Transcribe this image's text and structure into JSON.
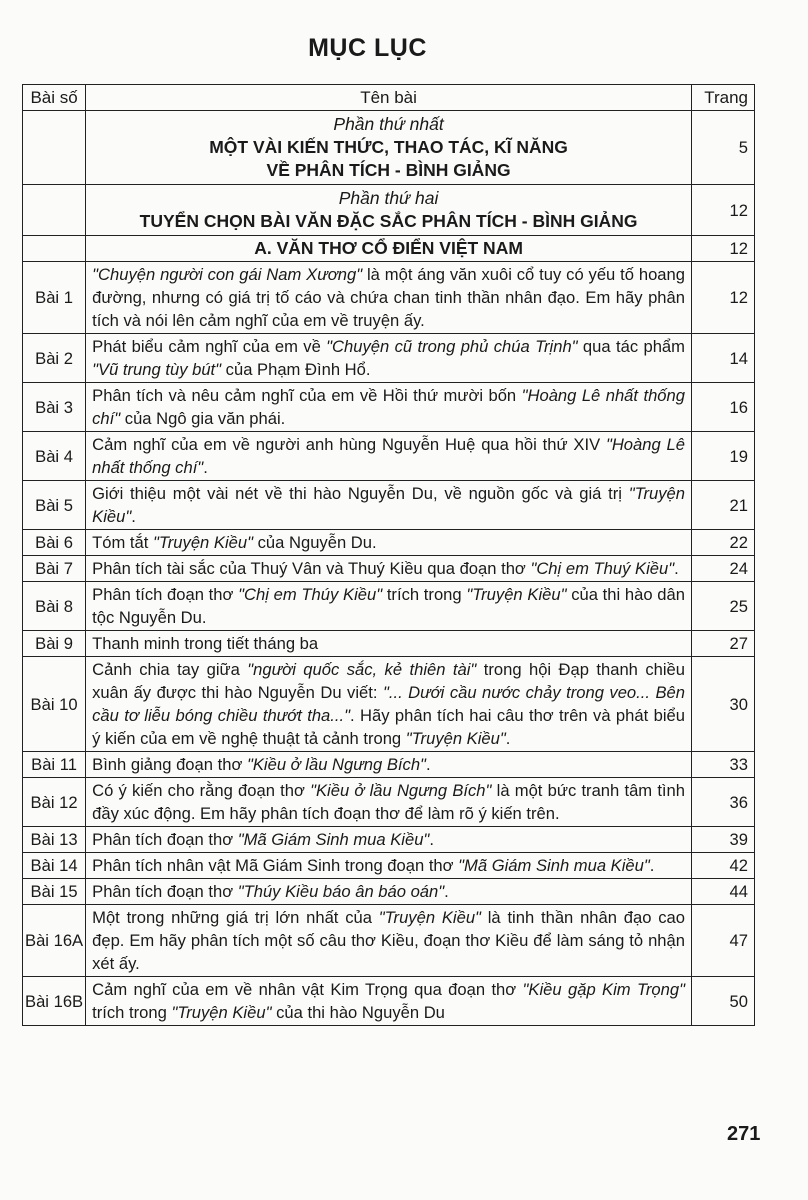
{
  "title": "MỤC LỤC",
  "table": {
    "headers": {
      "number": "Bài số",
      "name": "Tên bài",
      "page": "Trang"
    },
    "parts": [
      {
        "label": "Phần thứ nhất",
        "title_line1": "MỘT VÀI KIẾN THỨC, THAO TÁC, KĨ NĂNG",
        "title_line2": "VỀ PHÂN TÍCH - BÌNH GIẢNG",
        "page": "5"
      },
      {
        "label": "Phần thứ hai",
        "title_line1": "TUYỂN CHỌN BÀI VĂN ĐẶC SẮC PHÂN TÍCH - BÌNH GIẢNG",
        "page": "12"
      }
    ],
    "section": {
      "title": "A. VĂN THƠ CỔ ĐIỂN VIỆT NAM",
      "page": "12"
    },
    "rows": [
      {
        "number": "Bài 1",
        "segments": [
          {
            "t": "\"Chuyện người con gái Nam Xương\"",
            "i": true
          },
          {
            "t": " là một áng văn xuôi cổ tuy có yếu tố hoang đường, nhưng có giá trị tố cáo và chứa chan tinh thần nhân đạo. Em hãy phân tích và nói lên cảm nghĩ của em về truyện ấy."
          }
        ],
        "page": "12"
      },
      {
        "number": "Bài 2",
        "segments": [
          {
            "t": "Phát biểu cảm nghĩ của em về "
          },
          {
            "t": "\"Chuyện cũ trong phủ chúa Trịnh\"",
            "i": true
          },
          {
            "t": " qua tác phẩm "
          },
          {
            "t": "\"Vũ trung tùy bút\"",
            "i": true
          },
          {
            "t": " của Phạm Đình Hổ."
          }
        ],
        "page": "14"
      },
      {
        "number": "Bài 3",
        "segments": [
          {
            "t": "Phân tích và nêu cảm nghĩ của em về Hồi thứ mười bốn "
          },
          {
            "t": "\"Hoàng Lê nhất thống chí\"",
            "i": true
          },
          {
            "t": " của Ngô gia văn phái."
          }
        ],
        "page": "16"
      },
      {
        "number": "Bài 4",
        "segments": [
          {
            "t": "Cảm nghĩ của em về người anh hùng Nguyễn Huệ qua hồi thứ XIV "
          },
          {
            "t": "\"Hoàng Lê nhất thống chí\"",
            "i": true
          },
          {
            "t": "."
          }
        ],
        "page": "19"
      },
      {
        "number": "Bài 5",
        "segments": [
          {
            "t": "Giới thiệu một vài nét về thi hào Nguyễn Du, về nguồn gốc và giá trị "
          },
          {
            "t": "\"Truyện Kiều\"",
            "i": true
          },
          {
            "t": "."
          }
        ],
        "page": "21"
      },
      {
        "number": "Bài 6",
        "segments": [
          {
            "t": "Tóm tắt "
          },
          {
            "t": "\"Truyện Kiều\"",
            "i": true
          },
          {
            "t": " của Nguyễn Du."
          }
        ],
        "page": "22"
      },
      {
        "number": "Bài 7",
        "segments": [
          {
            "t": "Phân tích tài sắc của Thuý Vân và Thuý Kiều qua đoạn thơ "
          },
          {
            "t": "\"Chị em Thuý Kiều\"",
            "i": true
          },
          {
            "t": "."
          }
        ],
        "page": "24"
      },
      {
        "number": "Bài 8",
        "segments": [
          {
            "t": "Phân tích đoạn thơ "
          },
          {
            "t": "\"Chị em Thúy Kiều\"",
            "i": true
          },
          {
            "t": " trích trong "
          },
          {
            "t": "\"Truyện Kiều\"",
            "i": true
          },
          {
            "t": " của thi hào dân tộc Nguyễn Du."
          }
        ],
        "page": "25"
      },
      {
        "number": "Bài 9",
        "segments": [
          {
            "t": "Thanh minh trong tiết tháng ba"
          }
        ],
        "page": "27"
      },
      {
        "number": "Bài 10",
        "segments": [
          {
            "t": "Cảnh chia tay giữa "
          },
          {
            "t": "\"người quốc sắc, kẻ thiên tài\"",
            "i": true
          },
          {
            "t": " trong hội Đạp thanh chiều xuân ấy được thi hào Nguyễn Du viết: "
          },
          {
            "t": "\"... Dưới cầu nước chảy trong veo... Bên cầu tơ liễu bóng chiều thướt tha...\"",
            "i": true
          },
          {
            "t": ". Hãy phân tích hai câu thơ trên và phát biểu ý kiến của em về nghệ thuật tả cảnh trong "
          },
          {
            "t": "\"Truyện Kiều\"",
            "i": true
          },
          {
            "t": "."
          }
        ],
        "page": "30"
      },
      {
        "number": "Bài 11",
        "segments": [
          {
            "t": "Bình giảng đoạn thơ "
          },
          {
            "t": "\"Kiều ở lầu Ngưng Bích\"",
            "i": true
          },
          {
            "t": "."
          }
        ],
        "page": "33"
      },
      {
        "number": "Bài 12",
        "segments": [
          {
            "t": "Có ý kiến cho rằng đoạn thơ "
          },
          {
            "t": "\"Kiều ở lầu Ngưng Bích\"",
            "i": true
          },
          {
            "t": " là một bức tranh tâm tình đầy xúc động. Em hãy phân tích đoạn thơ để làm rõ ý kiến trên."
          }
        ],
        "page": "36"
      },
      {
        "number": "Bài 13",
        "segments": [
          {
            "t": "Phân tích đoạn thơ "
          },
          {
            "t": "\"Mã Giám Sinh mua Kiều\"",
            "i": true
          },
          {
            "t": "."
          }
        ],
        "page": "39"
      },
      {
        "number": "Bài 14",
        "segments": [
          {
            "t": "Phân tích nhân vật Mã Giám Sinh trong đoạn thơ "
          },
          {
            "t": "\"Mã Giám Sinh mua Kiều\"",
            "i": true
          },
          {
            "t": "."
          }
        ],
        "page": "42"
      },
      {
        "number": "Bài 15",
        "segments": [
          {
            "t": "Phân tích đoạn thơ "
          },
          {
            "t": "\"Thúy Kiều báo ân báo oán\"",
            "i": true
          },
          {
            "t": "."
          }
        ],
        "page": "44"
      },
      {
        "number": "Bài 16A",
        "segments": [
          {
            "t": "Một trong những giá trị lớn nhất của "
          },
          {
            "t": "\"Truyện Kiều\"",
            "i": true
          },
          {
            "t": " là tinh thần nhân đạo cao đẹp. Em hãy phân tích một số câu thơ Kiều, đoạn thơ Kiều để làm sáng tỏ nhận xét ấy."
          }
        ],
        "page": "47"
      },
      {
        "number": "Bài 16B",
        "segments": [
          {
            "t": "Cảm nghĩ của em về nhân vật Kim Trọng qua đoạn thơ "
          },
          {
            "t": "\"Kiều gặp Kim Trọng\"",
            "i": true
          },
          {
            "t": " trích trong "
          },
          {
            "t": "\"Truyện Kiều\"",
            "i": true
          },
          {
            "t": " của thi hào Nguyễn Du"
          }
        ],
        "page": "50"
      }
    ]
  },
  "page_number": "271"
}
